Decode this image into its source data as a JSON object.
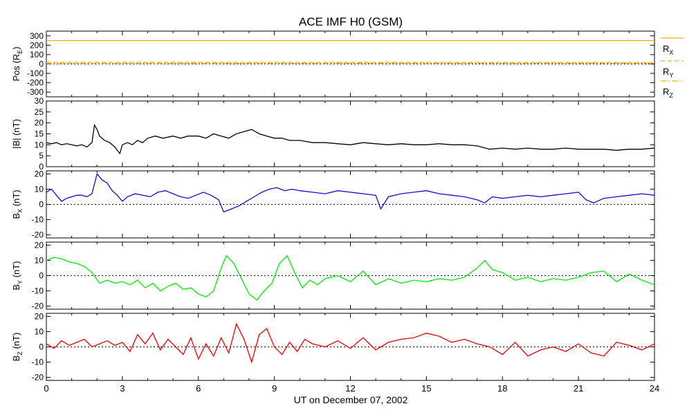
{
  "title": "ACE IMF H0 (GSM)",
  "xlabel": "UT on December 07, 2002",
  "x_ticks": [
    "0",
    "3",
    "6",
    "9",
    "12",
    "15",
    "18",
    "21",
    "24"
  ],
  "colors": {
    "bmag": "#000000",
    "bx": "#2200dd",
    "by": "#00ee00",
    "bz": "#ee0000",
    "pos": "#ffaa00"
  },
  "legend": [
    {
      "main": "R",
      "sub": "X",
      "style": "solid"
    },
    {
      "main": "R",
      "sub": "Y",
      "style": "dashed"
    },
    {
      "main": "R",
      "sub": "Z",
      "style": "dashdot"
    }
  ],
  "chart_data": [
    {
      "id": "pos",
      "type": "line",
      "ylabel_main": "Pos (R",
      "ylabel_sub": "E",
      "ylabel_end": ")",
      "ylim": [
        -350,
        350
      ],
      "y_ticks": [
        "300",
        "200",
        "100",
        "0",
        "-100",
        "-200",
        "-300"
      ],
      "y_tick_values": [
        300,
        200,
        100,
        0,
        -100,
        -200,
        -300
      ],
      "zero_line": true,
      "series": [
        {
          "name": "R_X",
          "style": "solid",
          "x": [
            0,
            24
          ],
          "values": [
            250,
            250
          ]
        },
        {
          "name": "R_Y",
          "style": "dashed",
          "x": [
            0,
            24
          ],
          "values": [
            18,
            15
          ]
        },
        {
          "name": "R_Z",
          "style": "dashdot",
          "x": [
            0,
            24
          ],
          "values": [
            5,
            8
          ]
        }
      ]
    },
    {
      "id": "bmag",
      "type": "line",
      "ylabel_main": "|B| (nT)",
      "ylabel_sub": "",
      "ylabel_end": "",
      "ylim": [
        0,
        30
      ],
      "y_ticks": [
        "30",
        "25",
        "20",
        "15",
        "10",
        "5",
        "0"
      ],
      "y_tick_values": [
        30,
        25,
        20,
        15,
        10,
        5,
        0
      ],
      "zero_line": false,
      "x": [
        0,
        0.2,
        0.4,
        0.6,
        0.8,
        1.0,
        1.2,
        1.4,
        1.6,
        1.8,
        1.9,
        2.0,
        2.1,
        2.3,
        2.5,
        2.7,
        2.9,
        3.0,
        3.2,
        3.4,
        3.6,
        3.8,
        4.0,
        4.3,
        4.6,
        5.0,
        5.3,
        5.6,
        6.0,
        6.3,
        6.6,
        6.9,
        7.2,
        7.5,
        7.8,
        8.1,
        8.4,
        8.7,
        9.0,
        9.3,
        9.6,
        10.0,
        10.5,
        11.0,
        11.5,
        12.0,
        12.5,
        13.0,
        13.5,
        14.0,
        14.5,
        15.0,
        15.5,
        16.0,
        16.5,
        17.0,
        17.5,
        18.0,
        18.5,
        19.0,
        19.5,
        20.0,
        20.5,
        21.0,
        21.5,
        22.0,
        22.5,
        23.0,
        23.5,
        24.0
      ],
      "values": [
        11,
        10.5,
        11,
        10,
        10.5,
        10,
        9.5,
        10,
        9,
        11,
        19,
        17,
        14,
        12,
        11,
        9,
        6,
        10,
        11,
        10,
        12,
        11,
        13,
        14,
        13,
        14,
        13,
        14,
        14,
        13,
        15,
        14,
        13,
        15,
        16,
        17,
        15,
        14,
        13,
        13,
        12,
        12,
        11,
        11,
        10.5,
        10,
        11,
        10.5,
        10,
        10.5,
        10,
        10,
        10.5,
        10,
        10,
        9.5,
        8,
        8.5,
        8,
        8.5,
        8,
        8,
        8.5,
        8,
        8,
        8,
        7.5,
        8,
        8,
        8.5
      ]
    },
    {
      "id": "bx",
      "type": "line",
      "ylabel_main": "B",
      "ylabel_sub": "X",
      "ylabel_end": " (nT)",
      "ylim": [
        -22,
        22
      ],
      "y_ticks": [
        "20",
        "10",
        "0",
        "-10",
        "-20"
      ],
      "y_tick_values": [
        20,
        10,
        0,
        -10,
        -20
      ],
      "zero_line": true,
      "x": [
        0,
        0.2,
        0.4,
        0.6,
        0.8,
        1.0,
        1.2,
        1.4,
        1.6,
        1.8,
        2.0,
        2.2,
        2.4,
        2.6,
        2.8,
        3.0,
        3.2,
        3.5,
        3.8,
        4.1,
        4.4,
        4.7,
        5.0,
        5.3,
        5.6,
        5.9,
        6.2,
        6.5,
        6.8,
        7.0,
        7.3,
        7.6,
        7.9,
        8.2,
        8.5,
        8.8,
        9.1,
        9.4,
        9.7,
        10.0,
        10.5,
        11.0,
        11.5,
        12.0,
        12.5,
        13.0,
        13.2,
        13.5,
        14.0,
        14.5,
        15.0,
        15.5,
        16.0,
        16.5,
        17.0,
        17.3,
        17.6,
        18.0,
        18.5,
        19.0,
        19.5,
        20.0,
        20.5,
        21.0,
        21.3,
        21.6,
        22.0,
        22.5,
        23.0,
        23.5,
        24.0
      ],
      "values": [
        8,
        10,
        6,
        2,
        4,
        5,
        6,
        6,
        5,
        7,
        20,
        16,
        14,
        9,
        6,
        2,
        5,
        7,
        6,
        5,
        8,
        9,
        7,
        5,
        4,
        6,
        8,
        6,
        3,
        -5,
        -3,
        -1,
        2,
        5,
        8,
        10,
        11,
        9,
        10,
        9,
        8,
        7,
        9,
        8,
        7,
        6,
        -3,
        5,
        7,
        8,
        9,
        7,
        6,
        5,
        3,
        1,
        5,
        4,
        5,
        6,
        5,
        6,
        7,
        8,
        3,
        1,
        4,
        5,
        6,
        7,
        6
      ]
    },
    {
      "id": "by",
      "type": "line",
      "ylabel_main": "B",
      "ylabel_sub": "Y",
      "ylabel_end": " (nT)",
      "ylim": [
        -22,
        22
      ],
      "y_ticks": [
        "20",
        "10",
        "0",
        "-10",
        "-20"
      ],
      "y_tick_values": [
        20,
        10,
        0,
        -10,
        -20
      ],
      "zero_line": true,
      "x": [
        0,
        0.3,
        0.6,
        0.9,
        1.2,
        1.5,
        1.8,
        2.1,
        2.4,
        2.7,
        3.0,
        3.3,
        3.6,
        3.9,
        4.2,
        4.5,
        4.8,
        5.1,
        5.4,
        5.7,
        6.0,
        6.3,
        6.6,
        6.9,
        7.1,
        7.4,
        7.7,
        8.0,
        8.3,
        8.6,
        8.9,
        9.2,
        9.5,
        9.8,
        10.1,
        10.4,
        10.7,
        11.0,
        11.5,
        12.0,
        12.5,
        13.0,
        13.5,
        14.0,
        14.5,
        15.0,
        15.5,
        16.0,
        16.5,
        17.0,
        17.3,
        17.6,
        18.0,
        18.5,
        19.0,
        19.5,
        20.0,
        20.5,
        21.0,
        21.5,
        22.0,
        22.5,
        23.0,
        23.5,
        24.0
      ],
      "values": [
        10,
        12,
        11,
        9,
        8,
        6,
        2,
        -5,
        -3,
        -5,
        -4,
        -6,
        -3,
        -8,
        -5,
        -10,
        -7,
        -5,
        -9,
        -8,
        -12,
        -14,
        -10,
        5,
        13,
        8,
        -2,
        -12,
        -16,
        -10,
        -5,
        8,
        13,
        2,
        -8,
        -3,
        -6,
        -2,
        0,
        -4,
        3,
        -6,
        -2,
        -5,
        -3,
        -4,
        -2,
        -3,
        -1,
        5,
        10,
        4,
        2,
        -3,
        -1,
        -4,
        -2,
        -3,
        -1,
        2,
        3,
        -4,
        1,
        -3,
        -6
      ]
    },
    {
      "id": "bz",
      "type": "line",
      "ylabel_main": "B",
      "ylabel_sub": "Z",
      "ylabel_end": " (nT)",
      "ylim": [
        -22,
        22
      ],
      "y_ticks": [
        "20",
        "10",
        "0",
        "-10",
        "-20"
      ],
      "y_tick_values": [
        20,
        10,
        0,
        -10,
        -20
      ],
      "zero_line": true,
      "x": [
        0,
        0.3,
        0.6,
        0.9,
        1.2,
        1.5,
        1.8,
        2.1,
        2.4,
        2.7,
        3.0,
        3.3,
        3.6,
        3.9,
        4.2,
        4.5,
        4.8,
        5.1,
        5.4,
        5.7,
        6.0,
        6.3,
        6.6,
        6.9,
        7.2,
        7.5,
        7.8,
        8.1,
        8.4,
        8.7,
        9.0,
        9.3,
        9.6,
        9.9,
        10.2,
        10.5,
        11.0,
        11.5,
        12.0,
        12.5,
        13.0,
        13.5,
        14.0,
        14.5,
        15.0,
        15.5,
        16.0,
        16.5,
        17.0,
        17.5,
        18.0,
        18.5,
        19.0,
        19.5,
        20.0,
        20.5,
        21.0,
        21.5,
        22.0,
        22.5,
        23.0,
        23.5,
        24.0
      ],
      "values": [
        2,
        -1,
        4,
        1,
        3,
        5,
        0,
        2,
        4,
        1,
        3,
        -3,
        8,
        2,
        9,
        -2,
        5,
        0,
        -5,
        6,
        -8,
        2,
        -6,
        6,
        -4,
        15,
        5,
        -10,
        8,
        12,
        0,
        -5,
        3,
        -3,
        5,
        2,
        0,
        4,
        -1,
        6,
        -2,
        3,
        5,
        6,
        9,
        7,
        3,
        5,
        2,
        0,
        -5,
        3,
        -6,
        -2,
        0,
        -3,
        2,
        -4,
        -6,
        3,
        1,
        -2,
        2
      ]
    }
  ]
}
